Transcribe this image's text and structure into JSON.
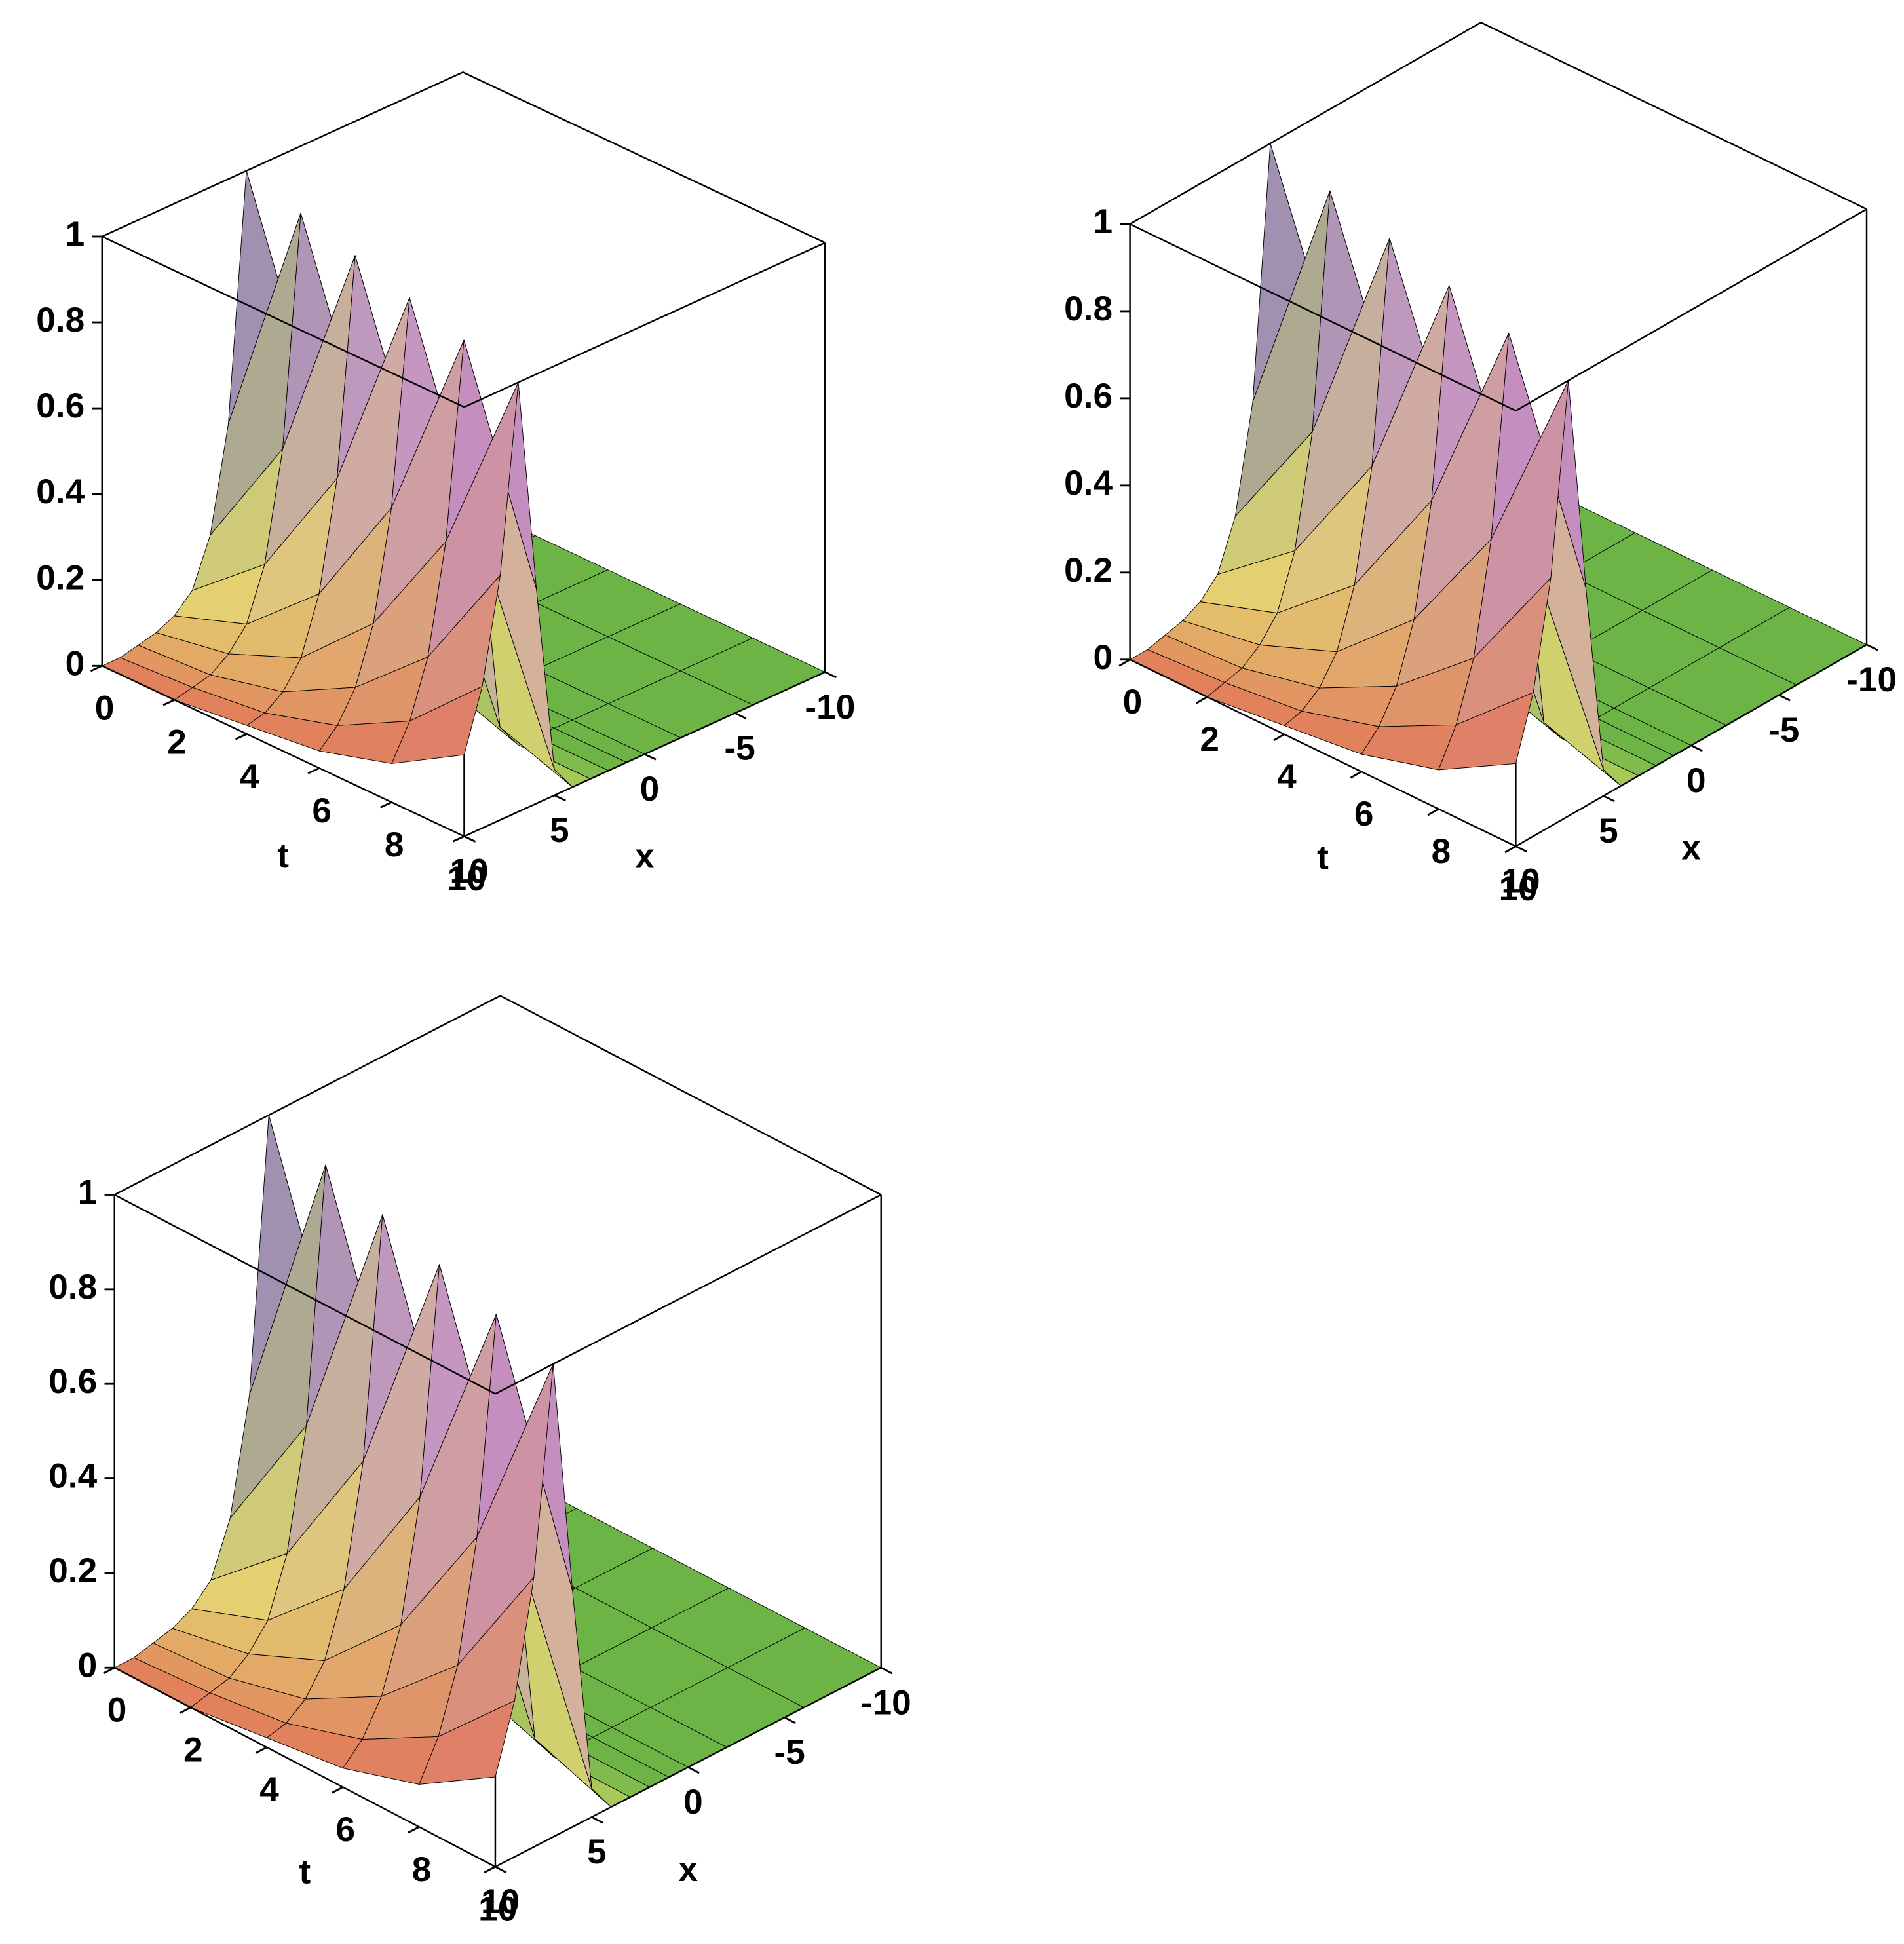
{
  "chart_data": [
    {
      "type": "surface",
      "tlabel": "t",
      "xlabel": "x",
      "t": [
        0,
        2,
        4,
        6,
        8,
        10
      ],
      "x": [
        -10,
        -6,
        -2,
        0,
        1,
        2,
        3,
        4,
        5,
        6,
        7,
        8,
        9,
        10
      ],
      "z": [
        [
          0,
          0,
          0,
          0.06,
          0.5,
          1,
          0.43,
          0.19,
          0.08,
          0.04,
          0.02,
          0.01,
          0,
          0
        ],
        [
          0,
          0,
          0,
          0,
          0.06,
          0.5,
          1,
          0.47,
          0.22,
          0.1,
          0.05,
          0.02,
          0.01,
          0
        ],
        [
          0,
          0,
          0,
          0,
          0,
          0.06,
          0.5,
          1,
          0.5,
          0.25,
          0.12,
          0.06,
          0.03,
          0.02
        ],
        [
          0,
          0,
          0,
          0,
          0,
          0,
          0.06,
          0.5,
          1,
          0.53,
          0.28,
          0.15,
          0.08,
          0.04
        ],
        [
          0,
          0,
          0,
          0,
          0,
          0,
          0,
          0.06,
          0.5,
          1,
          0.55,
          0.3,
          0.17,
          0.09
        ],
        [
          0,
          0,
          0,
          0,
          0,
          0,
          0,
          0,
          0.06,
          0.5,
          1,
          0.57,
          0.33,
          0.19
        ]
      ],
      "tlim": [
        0,
        10
      ],
      "xlim": [
        -10,
        10
      ],
      "zlim": [
        0,
        1
      ],
      "tticks": [
        0,
        2,
        4,
        6,
        8,
        10
      ],
      "xticks": [
        10,
        5,
        0,
        -5,
        -10
      ],
      "zticks": [
        0,
        0.2,
        0.4,
        0.6,
        0.8,
        1
      ],
      "colors": [
        "#6cb446",
        "#e6dc6e",
        "#e1785a",
        "#b478eb"
      ]
    },
    {
      "type": "surface",
      "tlabel": "t",
      "xlabel": "x",
      "t": [
        0,
        2,
        4,
        6,
        8,
        10
      ],
      "x": [
        -10,
        -6,
        -2,
        0,
        1,
        2,
        3,
        4,
        5,
        6,
        7,
        8,
        9,
        10
      ],
      "z": [
        [
          0,
          0,
          0,
          0.06,
          0.5,
          1,
          0.43,
          0.19,
          0.08,
          0.04,
          0.02,
          0.01,
          0,
          0
        ],
        [
          0,
          0,
          0,
          0,
          0.06,
          0.5,
          1,
          0.47,
          0.22,
          0.1,
          0.05,
          0.02,
          0.01,
          0
        ],
        [
          0,
          0,
          0,
          0,
          0,
          0.06,
          0.5,
          1,
          0.5,
          0.25,
          0.12,
          0.06,
          0.03,
          0.02
        ],
        [
          0,
          0,
          0,
          0,
          0,
          0,
          0.06,
          0.5,
          1,
          0.53,
          0.28,
          0.15,
          0.08,
          0.04
        ],
        [
          0,
          0,
          0,
          0,
          0,
          0,
          0,
          0.06,
          0.5,
          1,
          0.55,
          0.3,
          0.17,
          0.09
        ],
        [
          0,
          0,
          0,
          0,
          0,
          0,
          0,
          0,
          0.06,
          0.5,
          1,
          0.57,
          0.33,
          0.19
        ]
      ],
      "tlim": [
        0,
        10
      ],
      "xlim": [
        -10,
        10
      ],
      "zlim": [
        0,
        1
      ],
      "tticks": [
        0,
        2,
        4,
        6,
        8,
        10
      ],
      "xticks": [
        10,
        5,
        0,
        -5,
        -10
      ],
      "zticks": [
        0,
        0.2,
        0.4,
        0.6,
        0.8,
        1
      ],
      "colors": [
        "#6cb446",
        "#e6dc6e",
        "#e1785a",
        "#b478eb"
      ]
    },
    {
      "type": "surface",
      "tlabel": "t",
      "xlabel": "x",
      "t": [
        0,
        2,
        4,
        6,
        8,
        10
      ],
      "x": [
        -10,
        -6,
        -2,
        0,
        1,
        2,
        3,
        4,
        5,
        6,
        7,
        8,
        9,
        10
      ],
      "z": [
        [
          0,
          0,
          0,
          0.06,
          0.5,
          1,
          0.43,
          0.19,
          0.08,
          0.04,
          0.02,
          0.01,
          0,
          0
        ],
        [
          0,
          0,
          0,
          0,
          0.06,
          0.5,
          1,
          0.47,
          0.22,
          0.1,
          0.05,
          0.02,
          0.01,
          0
        ],
        [
          0,
          0,
          0,
          0,
          0,
          0.06,
          0.5,
          1,
          0.5,
          0.25,
          0.12,
          0.06,
          0.03,
          0.02
        ],
        [
          0,
          0,
          0,
          0,
          0,
          0,
          0.06,
          0.5,
          1,
          0.53,
          0.28,
          0.15,
          0.08,
          0.04
        ],
        [
          0,
          0,
          0,
          0,
          0,
          0,
          0,
          0.06,
          0.5,
          1,
          0.55,
          0.3,
          0.17,
          0.09
        ],
        [
          0,
          0,
          0,
          0,
          0,
          0,
          0,
          0,
          0.06,
          0.5,
          1,
          0.57,
          0.33,
          0.19
        ]
      ],
      "tlim": [
        0,
        10
      ],
      "xlim": [
        -10,
        10
      ],
      "zlim": [
        0,
        1
      ],
      "tticks": [
        0,
        2,
        4,
        6,
        8,
        10
      ],
      "xticks": [
        10,
        5,
        0,
        -5,
        -10
      ],
      "zticks": [
        0,
        0.2,
        0.4,
        0.6,
        0.8,
        1
      ],
      "colors": [
        "#6cb446",
        "#e6dc6e",
        "#e1785a",
        "#b478eb"
      ]
    }
  ]
}
